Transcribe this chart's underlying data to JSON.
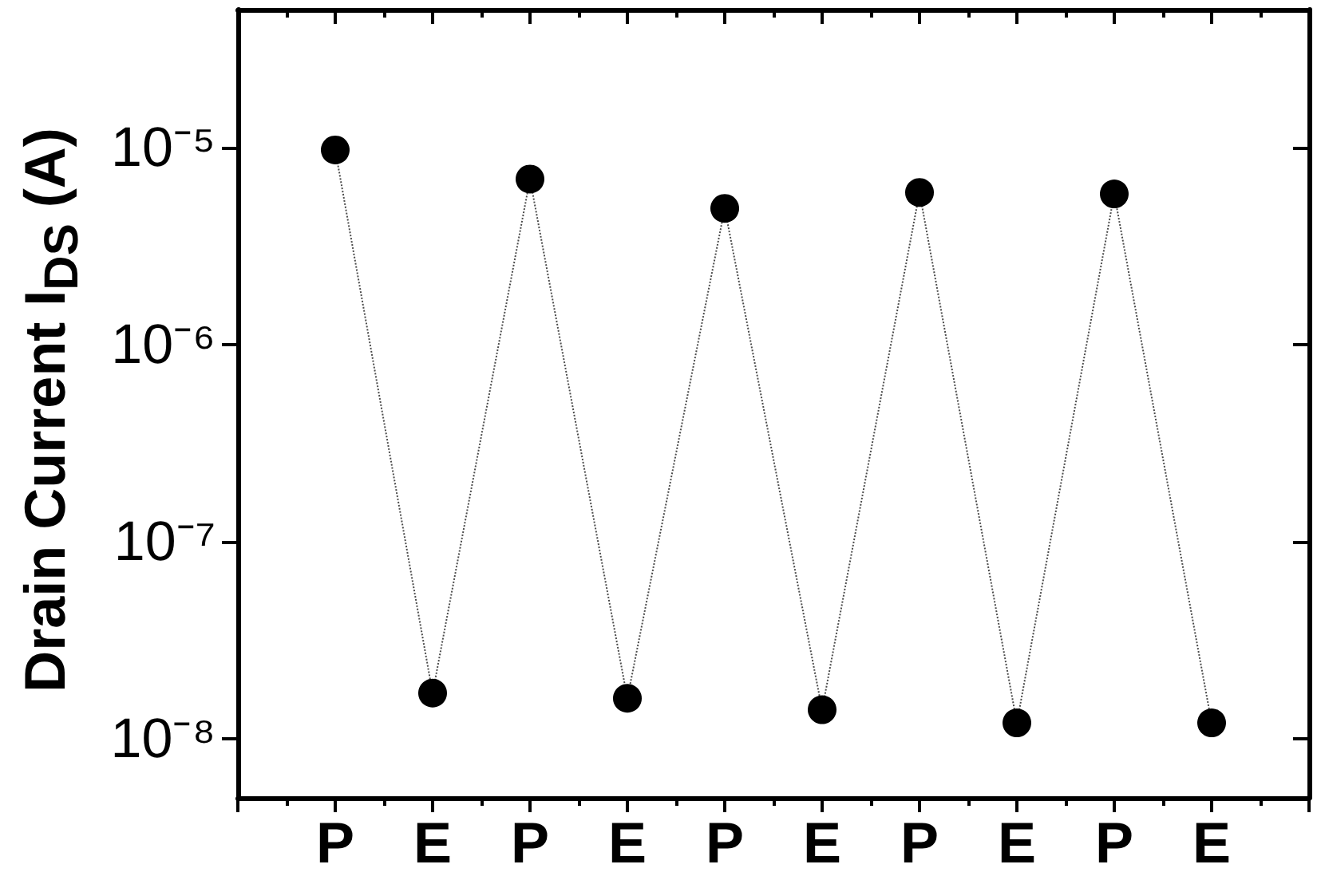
{
  "chart_data": {
    "type": "line",
    "ylabel": "Drain Current I$_{DS}$ (A)",
    "categories": [
      null,
      "P",
      "E",
      "P",
      "E",
      "P",
      "E",
      "P",
      "E",
      "P",
      "E",
      null
    ],
    "values": [
      null,
      9.7e-06,
      1.7e-08,
      6.9e-06,
      1.6e-08,
      4.9e-06,
      1.4e-08,
      5.9e-06,
      1.2e-08,
      5.8e-06,
      1.2e-08,
      null
    ],
    "color": "#000000",
    "marker": "circle",
    "line_style": "dotted",
    "log": "y",
    "ylim": [
      5e-09,
      5e-05
    ],
    "yticks": [
      {
        "value": 1e-08,
        "label": "10⁻⁸"
      },
      {
        "value": 1e-07,
        "label": "10⁻⁷"
      },
      {
        "value": 1e-06,
        "label": "10⁻⁶"
      },
      {
        "value": 1e-05,
        "label": "10⁻⁵"
      }
    ]
  }
}
